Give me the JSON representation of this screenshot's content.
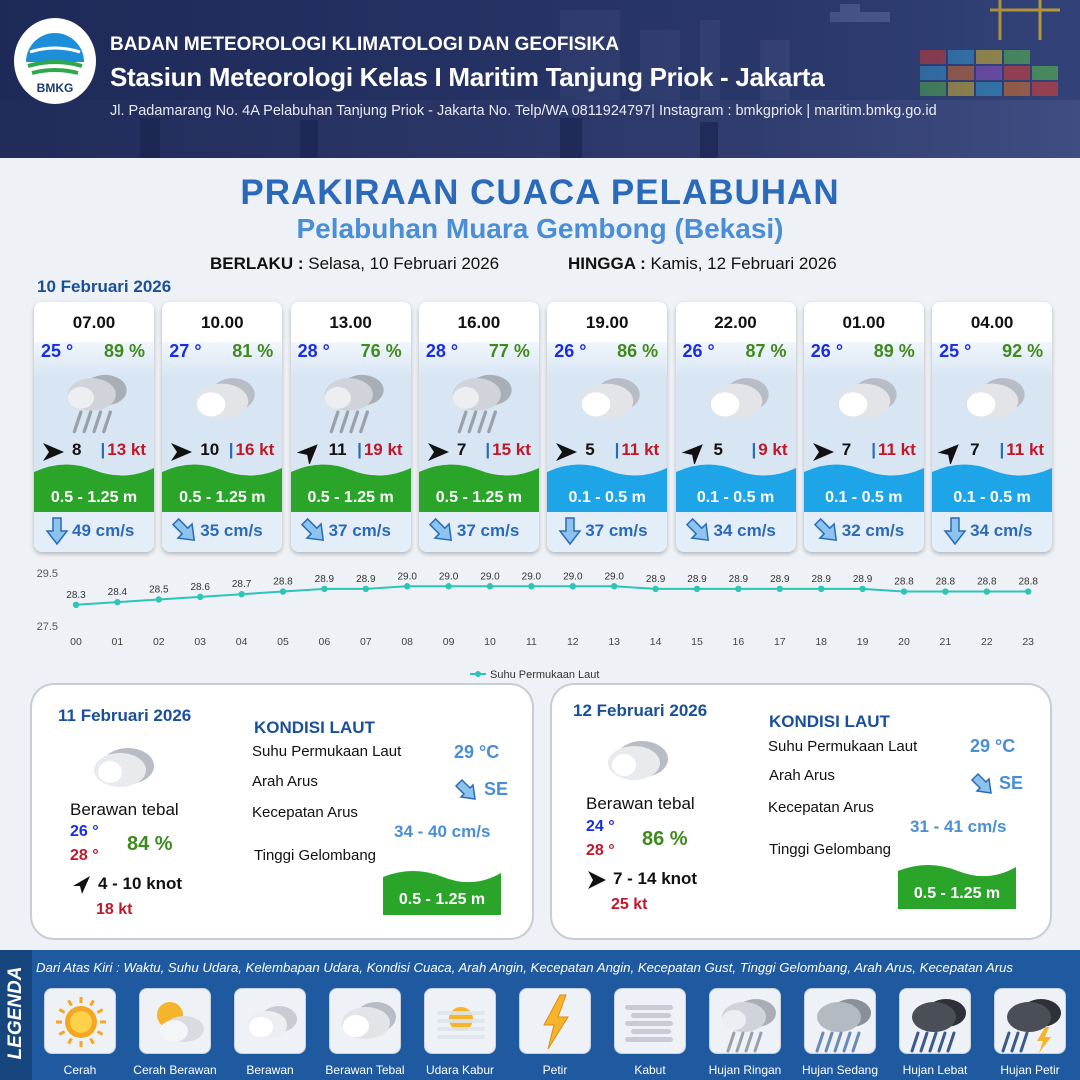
{
  "header": {
    "agency": "BADAN METEOROLOGI KLIMATOLOGI DAN GEOFISIKA",
    "station": "Stasiun Meteorologi Kelas I Maritim Tanjung Priok - Jakarta",
    "contact": "Jl. Padamarang No. 4A Pelabuhan Tanjung Priok - Jakarta No. Telp/WA 0811924797| Instagram : bmkgpriok | maritim.bmkg.go.id",
    "logo_text": "BMKG"
  },
  "title": "PRAKIRAAN CUACA PELABUHAN",
  "subtitle": "Pelabuhan Muara Gembong (Bekasi)",
  "validity": {
    "from_label": "BERLAKU :",
    "from_value": "Selasa, 10 Februari 2026",
    "to_label": "HINGGA :",
    "to_value": "Kamis, 12 Februari 2026"
  },
  "day1_date": "10 Februari 2026",
  "hourly": [
    {
      "time": "07.00",
      "temp": "25 °",
      "hum": "89 %",
      "icon": "rain-light-icon",
      "wind_dir": "E",
      "wind": "8",
      "gust": "13 kt",
      "wave": "0.5 - 1.25 m",
      "wave_color": "#2aa52a",
      "cur_dir": "S",
      "current": "49 cm/s"
    },
    {
      "time": "10.00",
      "temp": "27 °",
      "hum": "81 %",
      "icon": "cloudy-heavy-icon",
      "wind_dir": "E",
      "wind": "10",
      "gust": "16 kt",
      "wave": "0.5 - 1.25 m",
      "wave_color": "#2aa52a",
      "cur_dir": "SE",
      "current": "35 cm/s"
    },
    {
      "time": "13.00",
      "temp": "28 °",
      "hum": "76 %",
      "icon": "rain-light-icon",
      "wind_dir": "NE",
      "wind": "11",
      "gust": "19 kt",
      "wave": "0.5 - 1.25 m",
      "wave_color": "#2aa52a",
      "cur_dir": "SE",
      "current": "37 cm/s"
    },
    {
      "time": "16.00",
      "temp": "28 °",
      "hum": "77 %",
      "icon": "rain-light-icon",
      "wind_dir": "E",
      "wind": "7",
      "gust": "15 kt",
      "wave": "0.5 - 1.25 m",
      "wave_color": "#2aa52a",
      "cur_dir": "SE",
      "current": "37 cm/s"
    },
    {
      "time": "19.00",
      "temp": "26 °",
      "hum": "86 %",
      "icon": "cloudy-heavy-icon",
      "wind_dir": "E",
      "wind": "5",
      "gust": "11 kt",
      "wave": "0.1 - 0.5 m",
      "wave_color": "#1ea5e8",
      "cur_dir": "S",
      "current": "37 cm/s"
    },
    {
      "time": "22.00",
      "temp": "26 °",
      "hum": "87 %",
      "icon": "cloudy-heavy-icon",
      "wind_dir": "NE",
      "wind": "5",
      "gust": "9 kt",
      "wave": "0.1 - 0.5 m",
      "wave_color": "#1ea5e8",
      "cur_dir": "SE",
      "current": "34 cm/s"
    },
    {
      "time": "01.00",
      "temp": "26 °",
      "hum": "89 %",
      "icon": "cloudy-heavy-icon",
      "wind_dir": "E",
      "wind": "7",
      "gust": "11 kt",
      "wave": "0.1 - 0.5 m",
      "wave_color": "#1ea5e8",
      "cur_dir": "SE",
      "current": "32 cm/s"
    },
    {
      "time": "04.00",
      "temp": "25 °",
      "hum": "92 %",
      "icon": "cloudy-heavy-icon",
      "wind_dir": "NE",
      "wind": "7",
      "gust": "11 kt",
      "wave": "0.1 - 0.5 m",
      "wave_color": "#1ea5e8",
      "cur_dir": "S",
      "current": "34 cm/s"
    }
  ],
  "chart_data": {
    "type": "line",
    "x": [
      "00",
      "01",
      "02",
      "03",
      "04",
      "05",
      "06",
      "07",
      "08",
      "09",
      "10",
      "11",
      "12",
      "13",
      "14",
      "15",
      "16",
      "17",
      "18",
      "19",
      "20",
      "21",
      "22",
      "23"
    ],
    "series": [
      {
        "name": "Suhu Permukaan Laut",
        "values": [
          28.3,
          28.4,
          28.5,
          28.6,
          28.7,
          28.8,
          28.9,
          28.9,
          29.0,
          29.0,
          29.0,
          29.0,
          29.0,
          29.0,
          28.9,
          28.9,
          28.9,
          28.9,
          28.9,
          28.9,
          28.8,
          28.8,
          28.8,
          28.8
        ],
        "color": "#2ec4b6"
      }
    ],
    "ylim": [
      27.5,
      29.5
    ],
    "yticks": [
      "29.5",
      "27.5"
    ],
    "legend_position": "bottom",
    "grid": false
  },
  "days": [
    {
      "date": "11 Februari 2026",
      "condition": "Berawan tebal",
      "tmin": "26 °",
      "tmax": "28 °",
      "hum": "84 %",
      "wind": "4  - 10 knot",
      "wind_dir": "NE",
      "gust": "18 kt",
      "sea_title": "KONDISI LAUT",
      "sst_label": "Suhu Permukaan Laut",
      "sst": "29 °C",
      "cur_dir_label": "Arah Arus",
      "cur_dir": "SE",
      "cur_spd_label": "Kecepatan Arus",
      "cur_spd": "34  - 40 cm/s",
      "wave_label": "Tinggi Gelombang",
      "wave": "0.5 - 1.25 m"
    },
    {
      "date": "12 Februari 2026",
      "condition": "Berawan tebal",
      "tmin": "24 °",
      "tmax": "28 °",
      "hum": "86 %",
      "wind": "7  - 14 knot",
      "wind_dir": "E",
      "gust": "25 kt",
      "sea_title": "KONDISI LAUT",
      "sst_label": "Suhu Permukaan Laut",
      "sst": "29 °C",
      "cur_dir_label": "Arah Arus",
      "cur_dir": "SE",
      "cur_spd_label": "Kecepatan Arus",
      "cur_spd": "31  - 41 cm/s",
      "wave_label": "Tinggi Gelombang",
      "wave": "0.5 - 1.25 m"
    }
  ],
  "legend": {
    "title": "LEGENDA",
    "note": "Dari Atas Kiri : Waktu, Suhu Udara, Kelembapan Udara, Kondisi Cuaca, Arah Angin, Kecepatan Angin, Kecepatan Gust, Tinggi Gelombang, Arah Arus, Kecepatan Arus",
    "items": [
      {
        "label": "Cerah",
        "icon": "sun-icon"
      },
      {
        "label": "Cerah Berawan",
        "icon": "sun-cloud-icon"
      },
      {
        "label": "Berawan",
        "icon": "cloudy-icon"
      },
      {
        "label": "Berawan Tebal",
        "icon": "cloudy-heavy-icon"
      },
      {
        "label": "Udara Kabur",
        "icon": "haze-icon"
      },
      {
        "label": "Petir",
        "icon": "lightning-icon"
      },
      {
        "label": "Kabut",
        "icon": "fog-icon"
      },
      {
        "label": "Hujan Ringan",
        "icon": "rain-light-icon"
      },
      {
        "label": "Hujan Sedang",
        "icon": "rain-moderate-icon"
      },
      {
        "label": "Hujan Lebat",
        "icon": "rain-heavy-icon"
      },
      {
        "label": "Hujan Petir",
        "icon": "thunderstorm-icon"
      }
    ]
  }
}
